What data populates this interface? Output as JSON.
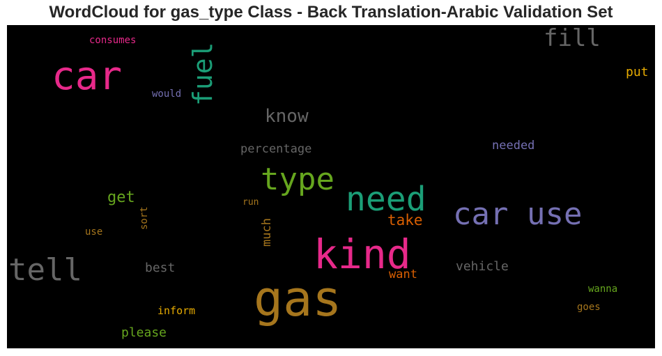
{
  "title": "WordCloud for gas_type Class - Back Translation-Arabic Validation Set",
  "words": {
    "car": {
      "text": "car",
      "color": "#e7298a"
    },
    "fuel": {
      "text": "fuel",
      "color": "#1b9e77"
    },
    "fill": {
      "text": "fill",
      "color": "#666666"
    },
    "consumes": {
      "text": "consumes",
      "color": "#e7298a"
    },
    "put": {
      "text": "put",
      "color": "#e6ab02"
    },
    "would": {
      "text": "would",
      "color": "#7570b3"
    },
    "know": {
      "text": "know",
      "color": "#666666"
    },
    "percentage": {
      "text": "percentage",
      "color": "#666666"
    },
    "needed": {
      "text": "needed",
      "color": "#7570b3"
    },
    "type": {
      "text": "type",
      "color": "#66a61e"
    },
    "need": {
      "text": "need",
      "color": "#1b9e77"
    },
    "get": {
      "text": "get",
      "color": "#66a61e"
    },
    "run": {
      "text": "run",
      "color": "#a6761d"
    },
    "car_use": {
      "text": "car use",
      "color": "#7570b3"
    },
    "sort": {
      "text": "sort",
      "color": "#a6761d"
    },
    "take": {
      "text": "take",
      "color": "#d95f02"
    },
    "use": {
      "text": "use",
      "color": "#a6761d"
    },
    "much": {
      "text": "much",
      "color": "#a6761d"
    },
    "kind": {
      "text": "kind",
      "color": "#e7298a"
    },
    "tell": {
      "text": "tell",
      "color": "#666666"
    },
    "best": {
      "text": "best",
      "color": "#666666"
    },
    "vehicle": {
      "text": "vehicle",
      "color": "#666666"
    },
    "want": {
      "text": "want",
      "color": "#d95f02"
    },
    "gas": {
      "text": "gas",
      "color": "#a6761d"
    },
    "wanna": {
      "text": "wanna",
      "color": "#66a61e"
    },
    "inform": {
      "text": "inform",
      "color": "#e6ab02"
    },
    "goes": {
      "text": "goes",
      "color": "#a6761d"
    },
    "please": {
      "text": "please",
      "color": "#66a61e"
    }
  }
}
